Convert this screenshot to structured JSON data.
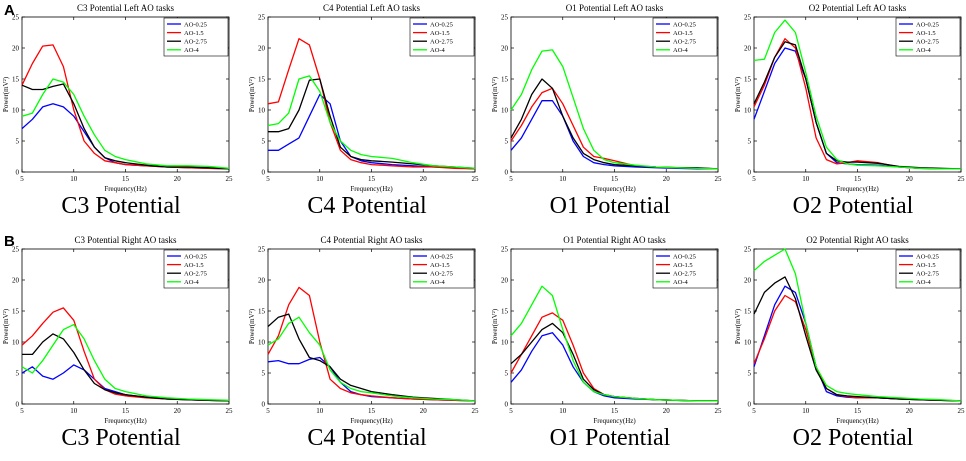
{
  "figure": {
    "row_labels": [
      "A",
      "B"
    ],
    "legend_series": [
      "AO-0.25",
      "AO-1.5",
      "AO-2.75",
      "AO-4"
    ],
    "colors": {
      "AO-0.25": "#0000ff",
      "AO-1.5": "#ff0000",
      "AO-2.75": "#000000",
      "AO-4": "#00ff00"
    },
    "xlabel": "Frequency(Hz)",
    "ylabel": "Power(mV²)",
    "xlim": [
      5,
      25
    ],
    "xticks": [
      5,
      10,
      15,
      20,
      25
    ]
  },
  "chart_data": [
    {
      "type": "line",
      "title": "C3 Potential Left AO tasks",
      "caption": "C3 Potential",
      "ylim": [
        0,
        25
      ],
      "yticks": [
        0,
        5,
        10,
        15,
        20,
        25
      ],
      "x": [
        5,
        6,
        7,
        8,
        9,
        10,
        11,
        12,
        13,
        14,
        15,
        17,
        19,
        21,
        23,
        25
      ],
      "series": [
        {
          "name": "AO-0.25",
          "values": [
            7,
            8.5,
            10.5,
            11,
            10.5,
            9,
            6.5,
            4,
            2.3,
            1.5,
            1.2,
            1,
            0.8,
            0.7,
            0.6,
            0.5
          ]
        },
        {
          "name": "AO-1.5",
          "values": [
            14,
            17.5,
            20.3,
            20.5,
            17,
            10,
            5,
            3,
            1.8,
            1.5,
            1.2,
            1,
            0.8,
            0.7,
            0.6,
            0.5
          ]
        },
        {
          "name": "AO-2.75",
          "values": [
            14,
            13.3,
            13.3,
            13.8,
            14.2,
            11,
            7,
            4,
            2.3,
            1.8,
            1.5,
            1.1,
            0.8,
            0.8,
            0.7,
            0.5
          ]
        },
        {
          "name": "AO-4",
          "values": [
            9,
            9.5,
            12.5,
            15,
            14.5,
            12.5,
            9,
            6,
            3.5,
            2.5,
            2,
            1.3,
            1,
            1,
            0.9,
            0.6
          ]
        }
      ]
    },
    {
      "type": "line",
      "title": "C4 Potential Left AO tasks",
      "caption": "C4 Potential",
      "ylim": [
        0,
        25
      ],
      "yticks": [
        0,
        5,
        10,
        15,
        20,
        25
      ],
      "x": [
        5,
        6,
        7,
        8,
        9,
        10,
        11,
        12,
        13,
        14,
        15,
        17,
        19,
        21,
        23,
        25
      ],
      "series": [
        {
          "name": "AO-0.25",
          "values": [
            3.5,
            3.5,
            4.5,
            5.5,
            9,
            12.5,
            11,
            5,
            2.5,
            1.8,
            1.5,
            1.2,
            1,
            0.8,
            0.7,
            0.5
          ]
        },
        {
          "name": "AO-1.5",
          "values": [
            11,
            11.3,
            16.5,
            21.5,
            20.5,
            15,
            8,
            3.5,
            2,
            1.5,
            1.2,
            1,
            0.8,
            0.8,
            0.6,
            0.5
          ]
        },
        {
          "name": "AO-2.75",
          "values": [
            6.5,
            6.5,
            7,
            10,
            14.8,
            15,
            9,
            4,
            2.5,
            2,
            1.8,
            1.6,
            1.3,
            1,
            0.8,
            0.6
          ]
        },
        {
          "name": "AO-4",
          "values": [
            7.5,
            7.8,
            9.5,
            15,
            15.5,
            13,
            8,
            5,
            3.5,
            2.8,
            2.5,
            2.2,
            1.5,
            1,
            0.8,
            0.6
          ]
        }
      ]
    },
    {
      "type": "line",
      "title": "O1 Potential Left AO tasks",
      "caption": "O1 Potential",
      "ylim": [
        0,
        25
      ],
      "yticks": [
        0,
        5,
        10,
        15,
        20,
        25
      ],
      "x": [
        5,
        6,
        7,
        8,
        9,
        10,
        11,
        12,
        13,
        14,
        15,
        17,
        19,
        21,
        23,
        25
      ],
      "series": [
        {
          "name": "AO-0.25",
          "values": [
            3.5,
            5.5,
            8.5,
            11.5,
            11.5,
            9,
            5,
            2.5,
            1.5,
            1.2,
            1,
            0.8,
            0.7,
            0.6,
            0.5,
            0.5
          ]
        },
        {
          "name": "AO-1.5",
          "values": [
            5,
            7.5,
            10.5,
            12.8,
            13.5,
            11,
            7.5,
            4,
            2.5,
            2.2,
            1.8,
            1,
            0.8,
            0.7,
            0.6,
            0.5
          ]
        },
        {
          "name": "AO-2.75",
          "values": [
            5.5,
            8.5,
            12.5,
            15,
            13.5,
            9,
            5.5,
            3,
            2,
            1.5,
            1.2,
            1,
            0.8,
            0.7,
            0.7,
            0.5
          ]
        },
        {
          "name": "AO-4",
          "values": [
            10,
            12.5,
            16.5,
            19.5,
            19.7,
            17,
            12,
            7,
            3.5,
            2,
            1.5,
            1.1,
            0.8,
            0.7,
            0.6,
            0.5
          ]
        }
      ]
    },
    {
      "type": "line",
      "title": "O2 Potential Left AO tasks",
      "caption": "O2 Potential",
      "ylim": [
        0,
        25
      ],
      "yticks": [
        0,
        5,
        10,
        15,
        20,
        25
      ],
      "x": [
        5,
        6,
        7,
        8,
        9,
        10,
        11,
        12,
        13,
        14,
        15,
        17,
        19,
        21,
        23,
        25
      ],
      "series": [
        {
          "name": "AO-0.25",
          "values": [
            8.5,
            13,
            17.5,
            20,
            19.5,
            15,
            8,
            3,
            1.5,
            1.3,
            1.2,
            1.1,
            0.8,
            0.6,
            0.5,
            0.5
          ]
        },
        {
          "name": "AO-1.5",
          "values": [
            10.5,
            14,
            18.5,
            21.5,
            20,
            13.5,
            5.5,
            2,
            1.3,
            1.5,
            1.8,
            1.5,
            0.8,
            0.6,
            0.5,
            0.5
          ]
        },
        {
          "name": "AO-2.75",
          "values": [
            11,
            14.5,
            18.5,
            21,
            20.5,
            15,
            8,
            3,
            1.8,
            1.6,
            1.6,
            1.4,
            0.9,
            0.7,
            0.6,
            0.5
          ]
        },
        {
          "name": "AO-4",
          "values": [
            18,
            18.2,
            22.5,
            24.5,
            22.5,
            16,
            9,
            4,
            2,
            1.3,
            1.1,
            1,
            0.8,
            0.6,
            0.5,
            0.5
          ]
        }
      ]
    },
    {
      "type": "line",
      "title": "C3 Potential Right AO tasks",
      "caption": "C3 Potential",
      "ylim": [
        0,
        25
      ],
      "yticks": [
        0,
        5,
        10,
        15,
        20,
        25
      ],
      "x": [
        5,
        6,
        7,
        8,
        9,
        10,
        11,
        12,
        13,
        14,
        15,
        17,
        19,
        21,
        23,
        25
      ],
      "series": [
        {
          "name": "AO-0.25",
          "values": [
            5,
            6,
            4.5,
            4,
            5,
            6.3,
            5.5,
            4,
            2.5,
            2,
            1.5,
            1.1,
            0.8,
            0.7,
            0.6,
            0.5
          ]
        },
        {
          "name": "AO-1.5",
          "values": [
            9.5,
            11,
            13,
            14.8,
            15.5,
            13.5,
            8.5,
            4,
            2.3,
            1.6,
            1.3,
            1,
            0.8,
            0.7,
            0.6,
            0.5
          ]
        },
        {
          "name": "AO-2.75",
          "values": [
            8,
            8,
            10,
            11.3,
            10.5,
            8.3,
            5.5,
            3.3,
            2.3,
            1.8,
            1.5,
            1.1,
            0.8,
            0.7,
            0.6,
            0.5
          ]
        },
        {
          "name": "AO-4",
          "values": [
            6,
            5,
            7,
            9.5,
            12,
            12.8,
            10.5,
            7,
            4,
            2.5,
            2,
            1.3,
            1,
            0.8,
            0.7,
            0.6
          ]
        }
      ]
    },
    {
      "type": "line",
      "title": "C4 Potential Right AO tasks",
      "caption": "C4 Potential",
      "ylim": [
        0,
        25
      ],
      "yticks": [
        0,
        5,
        10,
        15,
        20,
        25
      ],
      "x": [
        5,
        6,
        7,
        8,
        9,
        10,
        11,
        12,
        13,
        14,
        15,
        17,
        19,
        21,
        23,
        25
      ],
      "series": [
        {
          "name": "AO-0.25",
          "values": [
            6.8,
            7,
            6.5,
            6.5,
            7.2,
            7.5,
            6,
            3.5,
            2,
            1.5,
            1.2,
            1,
            0.8,
            0.7,
            0.6,
            0.5
          ]
        },
        {
          "name": "AO-1.5",
          "values": [
            8,
            11,
            16,
            18.8,
            17.5,
            10,
            4,
            2.5,
            1.8,
            1.5,
            1.3,
            1,
            0.8,
            0.7,
            0.6,
            0.5
          ]
        },
        {
          "name": "AO-2.75",
          "values": [
            12.5,
            14,
            14.5,
            10.5,
            7.5,
            7,
            6,
            4,
            3,
            2.5,
            2,
            1.5,
            1.1,
            0.9,
            0.7,
            0.5
          ]
        },
        {
          "name": "AO-4",
          "values": [
            9.5,
            10.5,
            13,
            14,
            11.5,
            9.5,
            5.5,
            3.5,
            2.5,
            2,
            1.8,
            1.3,
            1,
            0.8,
            0.7,
            0.5
          ]
        }
      ]
    },
    {
      "type": "line",
      "title": "O1 Potential Right AO tasks",
      "caption": "O1 Potential",
      "ylim": [
        0,
        25
      ],
      "yticks": [
        0,
        5,
        10,
        15,
        20,
        25
      ],
      "x": [
        5,
        6,
        7,
        8,
        9,
        10,
        11,
        12,
        13,
        14,
        15,
        17,
        19,
        21,
        23,
        25
      ],
      "series": [
        {
          "name": "AO-0.25",
          "values": [
            3.5,
            5.5,
            8.5,
            11,
            11.5,
            9.5,
            6,
            3.5,
            2,
            1.3,
            1,
            0.8,
            0.7,
            0.6,
            0.5,
            0.5
          ]
        },
        {
          "name": "AO-1.5",
          "values": [
            5,
            8,
            11,
            14,
            14.7,
            13.5,
            9.5,
            5,
            2.5,
            1.5,
            1.2,
            0.9,
            0.7,
            0.6,
            0.5,
            0.5
          ]
        },
        {
          "name": "AO-2.75",
          "values": [
            6.5,
            8,
            10,
            12,
            13,
            11.5,
            8,
            4,
            2.3,
            1.5,
            1.2,
            0.9,
            0.7,
            0.6,
            0.5,
            0.5
          ]
        },
        {
          "name": "AO-4",
          "values": [
            11,
            13,
            16,
            19,
            17.5,
            12,
            7,
            3.5,
            2,
            1.5,
            1.2,
            0.9,
            0.7,
            0.6,
            0.5,
            0.5
          ]
        }
      ]
    },
    {
      "type": "line",
      "title": "O2 Potential Right AO tasks",
      "caption": "O2 Potential",
      "ylim": [
        0,
        25
      ],
      "yticks": [
        0,
        5,
        10,
        15,
        20,
        25
      ],
      "x": [
        5,
        6,
        7,
        8,
        9,
        10,
        11,
        12,
        13,
        14,
        15,
        17,
        19,
        21,
        23,
        25
      ],
      "series": [
        {
          "name": "AO-0.25",
          "values": [
            6,
            11,
            16,
            19,
            18,
            13,
            6,
            2,
            1.3,
            1.1,
            1,
            1,
            0.8,
            0.7,
            0.6,
            0.5
          ]
        },
        {
          "name": "AO-1.5",
          "values": [
            6.5,
            10.5,
            15,
            17.5,
            16.5,
            12,
            6,
            2.5,
            1.5,
            1.2,
            1,
            1,
            0.8,
            0.7,
            0.6,
            0.5
          ]
        },
        {
          "name": "AO-2.75",
          "values": [
            14.5,
            18,
            19.5,
            20.5,
            17,
            11,
            5.5,
            2.5,
            1.5,
            1.3,
            1.2,
            1,
            0.8,
            0.7,
            0.6,
            0.5
          ]
        },
        {
          "name": "AO-4",
          "values": [
            21.5,
            23,
            24,
            25,
            21,
            13,
            6,
            3,
            2,
            1.7,
            1.5,
            1.2,
            1,
            0.8,
            0.7,
            0.5
          ]
        }
      ]
    }
  ]
}
